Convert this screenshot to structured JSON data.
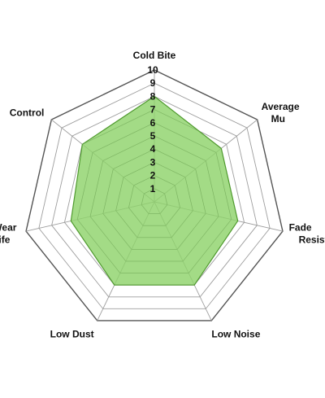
{
  "chart_data": {
    "type": "radar",
    "axes": [
      {
        "lines": [
          "Cold Bite"
        ]
      },
      {
        "lines": [
          "Average",
          "Mu"
        ]
      },
      {
        "lines": [
          "Fade",
          "Resistance"
        ]
      },
      {
        "lines": [
          "Low Noise"
        ]
      },
      {
        "lines": [
          "Low Dust"
        ]
      },
      {
        "lines": [
          "Wear",
          "Life"
        ]
      },
      {
        "lines": [
          "Control"
        ]
      }
    ],
    "values": [
      8,
      6.5,
      6.5,
      7,
      7,
      6.5,
      7
    ],
    "range": [
      0,
      10
    ],
    "ticks": [
      "1",
      "2",
      "3",
      "4",
      "5",
      "6",
      "7",
      "8",
      "9",
      "10"
    ],
    "grid_levels": 10,
    "grid": true,
    "legend": "none",
    "colors": {
      "fill": "#8fd36b",
      "stroke": "#4f9a2e",
      "grid": "#9e9e9e",
      "outer_ring": "#555555",
      "text": "#111111"
    }
  }
}
